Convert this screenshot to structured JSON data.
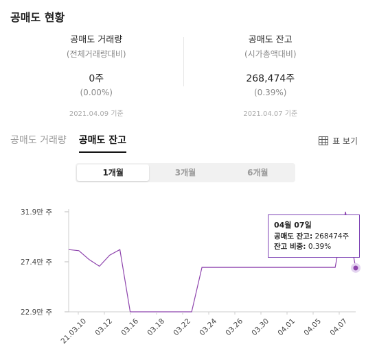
{
  "title": "공매도 현황",
  "summary": {
    "volume": {
      "label": "공매도 거래량",
      "sub": "(전체거래량대비)",
      "value": "0주",
      "ratio": "(0.00%)",
      "date": "2021.04.09 기준"
    },
    "balance": {
      "label": "공매도 잔고",
      "sub": "(시가총액대비)",
      "value": "268,474주",
      "ratio": "(0.39%)",
      "date": "2021.04.07 기준"
    }
  },
  "tabs": [
    "공매도 거래량",
    "공매도 잔고"
  ],
  "active_tab": 1,
  "table_view_label": "표 보기",
  "periods": [
    "1개월",
    "3개월",
    "6개월"
  ],
  "active_period": 0,
  "colors": {
    "line": "#8e44ad",
    "tooltip_border": "#7b3fb3",
    "grid": "#d8d8d8"
  },
  "tooltip": {
    "date": "04월 07일",
    "balance_label": "공매도 잔고:",
    "balance_value": "268474주",
    "ratio_label": "잔고 비중:",
    "ratio_value": "0.39%"
  },
  "chart_data": {
    "type": "line",
    "y_tick_labels": [
      "31.9만 주",
      "27.4만 주",
      "22.9만 주"
    ],
    "y_ticks": [
      319000,
      274000,
      229000
    ],
    "ylim": [
      229000,
      319000
    ],
    "x_tick_labels": [
      "21.03.10",
      "03.12",
      "03.16",
      "03.18",
      "03.22",
      "03.24",
      "03.26",
      "03.30",
      "04.01",
      "04.05",
      "04.07"
    ],
    "series": [
      {
        "values": [
          285000,
          284000,
          276000,
          270000,
          280000,
          285000,
          229000,
          229000,
          229000,
          229000,
          229000,
          229000,
          229000,
          269000,
          269000,
          269000,
          269000,
          269000,
          269000,
          269000,
          269000,
          269000,
          269000,
          269000,
          269000,
          269000,
          269000,
          319000,
          268474
        ]
      }
    ]
  }
}
